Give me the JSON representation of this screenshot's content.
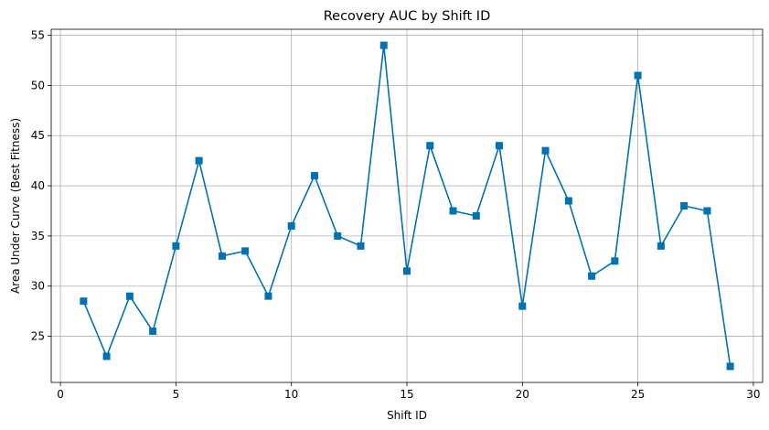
{
  "chart_data": {
    "type": "line",
    "title": "Recovery AUC by Shift ID",
    "xlabel": "Shift ID",
    "ylabel": "Area Under Curve (Best Fitness)",
    "xlim": [
      -0.4,
      30.4
    ],
    "ylim": [
      20.4,
      55.6
    ],
    "xticks": [
      0,
      5,
      10,
      15,
      20,
      25,
      30
    ],
    "yticks": [
      25,
      30,
      35,
      40,
      45,
      50,
      55
    ],
    "grid": true,
    "marker": "square",
    "series": [
      {
        "color": "#0072B2",
        "x": [
          1,
          2,
          3,
          4,
          5,
          6,
          7,
          8,
          9,
          10,
          11,
          12,
          13,
          14,
          15,
          16,
          17,
          18,
          19,
          20,
          21,
          22,
          23,
          24,
          25,
          26,
          27,
          28,
          29
        ],
        "values": [
          28.5,
          23.0,
          29.0,
          25.5,
          34.0,
          42.5,
          33.0,
          33.5,
          29.0,
          36.0,
          41.0,
          35.0,
          34.0,
          54.0,
          31.5,
          44.0,
          37.5,
          37.0,
          44.0,
          28.0,
          43.5,
          38.5,
          31.0,
          32.5,
          51.0,
          34.0,
          38.0,
          37.5,
          22.0
        ]
      }
    ]
  }
}
